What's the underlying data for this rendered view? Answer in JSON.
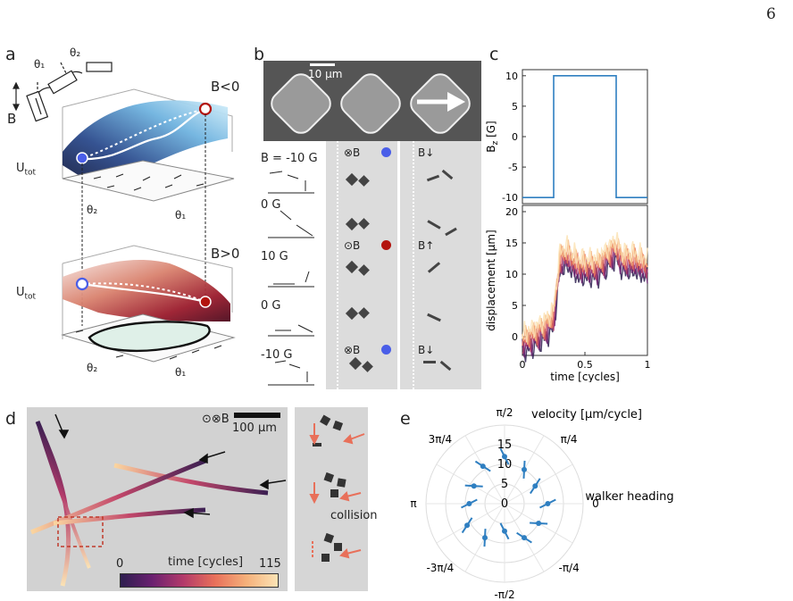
{
  "page_number": "6",
  "panel_labels": {
    "a": "a",
    "b": "b",
    "c": "c",
    "d": "d",
    "e": "e"
  },
  "panel_a": {
    "theta1": "θ₁",
    "theta2": "θ₂",
    "b_axis": "B",
    "top_condition": "B<0",
    "bottom_condition": "B>0",
    "u_tot_top": "U",
    "u_tot_sub": "tot",
    "u_tot_bottom": "U",
    "axis_theta2_top": "θ₂",
    "axis_theta1_top": "θ₁",
    "axis_theta2_bottom": "θ₂",
    "axis_theta1_bottom": "θ₁"
  },
  "panel_b": {
    "scale_bar": "10 µm",
    "field_labels": [
      "B = -10 G",
      "0 G",
      "10 G",
      "0 G",
      "-10 G"
    ],
    "col_markers": [
      {
        "sym": "⊗B",
        "dot": "#4a5ee8",
        "side": "B↓"
      },
      {
        "sym": "⊙B",
        "dot": "#b3140e",
        "side": "B↑"
      },
      {
        "sym": "⊗B",
        "dot": "#4a5ee8",
        "side": "B↓"
      }
    ]
  },
  "panel_c": {
    "chart_data": [
      {
        "type": "line",
        "ylabel": "B",
        "ylabel_sub": "z",
        "ylabel_unit": "[G]",
        "ylim": [
          -11,
          11
        ],
        "yticks": [
          -10,
          -5,
          0,
          5,
          10
        ],
        "x": [
          0,
          0.25,
          0.25,
          0.75,
          0.75,
          1
        ],
        "values": [
          -10,
          -10,
          10,
          10,
          -10,
          -10
        ],
        "color": "#2f7fc1"
      },
      {
        "type": "line",
        "xlabel": "time [cycles]",
        "ylabel": "displacement [µm]",
        "xlim": [
          0,
          1
        ],
        "ylim": [
          -3,
          21
        ],
        "xticks": [
          0,
          0.5,
          1
        ],
        "xtick_labels": [
          "0",
          "0.5",
          "1"
        ],
        "yticks": [
          0,
          5,
          10,
          15,
          20
        ],
        "trend": {
          "x": [
            0,
            0.1,
            0.2,
            0.25,
            0.3,
            0.35,
            0.45,
            0.6,
            0.75,
            0.8,
            0.9,
            1
          ],
          "y": [
            -1,
            0,
            1.5,
            3,
            12,
            13,
            11,
            11,
            14,
            12,
            12,
            11
          ]
        },
        "colormap": [
          "#2d1e4f",
          "#6a2070",
          "#b33a6a",
          "#e8705a",
          "#f5b07a",
          "#fbe3b5"
        ]
      }
    ]
  },
  "panel_d": {
    "field": "⊙⊗B",
    "scale_bar": "100 µm",
    "colorbar_min": "0",
    "colorbar_max": "115",
    "colorbar_label": "time [cycles]",
    "collision": "collision"
  },
  "panel_e": {
    "chart_data": {
      "type": "polar",
      "title": "velocity [µm/cycle]",
      "angle_label": "walker heading",
      "r_ticks": [
        0,
        5,
        10,
        15
      ],
      "angle_labels": [
        "0",
        "π/4",
        "π/2",
        "3π/4",
        "π",
        "-3π/4",
        "-π/2",
        "-π/4"
      ],
      "rmax": 20,
      "points": [
        {
          "theta_deg": 0,
          "r": 11
        },
        {
          "theta_deg": 30,
          "r": 9
        },
        {
          "theta_deg": 60,
          "r": 10
        },
        {
          "theta_deg": 90,
          "r": 12
        },
        {
          "theta_deg": 120,
          "r": 11
        },
        {
          "theta_deg": 150,
          "r": 9
        },
        {
          "theta_deg": 180,
          "r": 9
        },
        {
          "theta_deg": 210,
          "r": 11
        },
        {
          "theta_deg": 240,
          "r": 10
        },
        {
          "theta_deg": 270,
          "r": 7
        },
        {
          "theta_deg": 300,
          "r": 10
        },
        {
          "theta_deg": 330,
          "r": 10
        }
      ],
      "color": "#2f7fc1"
    }
  }
}
